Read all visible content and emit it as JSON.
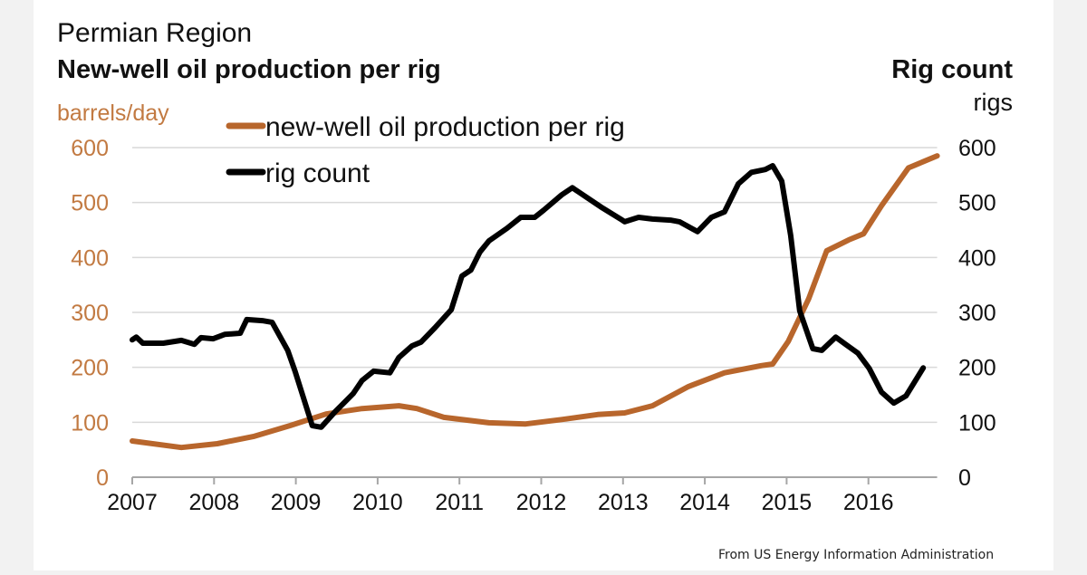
{
  "chart_data": {
    "type": "line",
    "region": "Permian Region",
    "title": "New-well oil production per rig",
    "right_title": "Rig count",
    "ylabel_left": "barrels/day",
    "ylabel_right": "rigs",
    "source": "From US Energy Information Administration",
    "xlim": [
      2007,
      2016.84
    ],
    "ylim_left": [
      0,
      600
    ],
    "ylim_right": [
      0,
      600
    ],
    "x_ticks": [
      "2007",
      "2008",
      "2009",
      "2010",
      "2011",
      "2012",
      "2013",
      "2014",
      "2015",
      "2016"
    ],
    "y_ticks_left": [
      "0",
      "100",
      "200",
      "300",
      "400",
      "500",
      "600"
    ],
    "y_ticks_right": [
      "0",
      "100",
      "200",
      "300",
      "400",
      "500",
      "600"
    ],
    "grid": "horizontal",
    "legend_placement": "top-left",
    "series": [
      {
        "name": "new-well oil production per rig",
        "axis": "left",
        "color": "#b8662c",
        "points": [
          [
            2007.0,
            66
          ],
          [
            2007.6,
            54
          ],
          [
            2008.04,
            61
          ],
          [
            2008.48,
            74
          ],
          [
            2008.93,
            94
          ],
          [
            2009.37,
            115
          ],
          [
            2009.81,
            125
          ],
          [
            2010.26,
            130
          ],
          [
            2010.48,
            125
          ],
          [
            2010.81,
            109
          ],
          [
            2011.36,
            99
          ],
          [
            2011.81,
            97
          ],
          [
            2012.25,
            105
          ],
          [
            2012.69,
            114
          ],
          [
            2013.02,
            117
          ],
          [
            2013.36,
            130
          ],
          [
            2013.8,
            165
          ],
          [
            2014.24,
            190
          ],
          [
            2014.69,
            203
          ],
          [
            2014.83,
            206
          ],
          [
            2015.02,
            247
          ],
          [
            2015.27,
            325
          ],
          [
            2015.49,
            412
          ],
          [
            2015.76,
            432
          ],
          [
            2015.94,
            443
          ],
          [
            2016.16,
            494
          ],
          [
            2016.49,
            563
          ],
          [
            2016.84,
            585
          ]
        ]
      },
      {
        "name": "rig count",
        "axis": "right",
        "color": "#000000",
        "points": [
          [
            2007.0,
            250
          ],
          [
            2007.05,
            255
          ],
          [
            2007.13,
            244
          ],
          [
            2007.38,
            244
          ],
          [
            2007.6,
            249
          ],
          [
            2007.76,
            242
          ],
          [
            2007.84,
            254
          ],
          [
            2007.99,
            252
          ],
          [
            2008.13,
            260
          ],
          [
            2008.32,
            262
          ],
          [
            2008.4,
            287
          ],
          [
            2008.59,
            285
          ],
          [
            2008.71,
            282
          ],
          [
            2008.9,
            231
          ],
          [
            2008.99,
            193
          ],
          [
            2009.2,
            94
          ],
          [
            2009.31,
            91
          ],
          [
            2009.48,
            119
          ],
          [
            2009.7,
            152
          ],
          [
            2009.81,
            176
          ],
          [
            2009.95,
            193
          ],
          [
            2010.15,
            190
          ],
          [
            2010.26,
            218
          ],
          [
            2010.42,
            239
          ],
          [
            2010.53,
            246
          ],
          [
            2010.7,
            272
          ],
          [
            2010.9,
            305
          ],
          [
            2011.03,
            366
          ],
          [
            2011.14,
            377
          ],
          [
            2011.25,
            410
          ],
          [
            2011.36,
            430
          ],
          [
            2011.58,
            453
          ],
          [
            2011.75,
            473
          ],
          [
            2011.92,
            473
          ],
          [
            2012.03,
            486
          ],
          [
            2012.25,
            514
          ],
          [
            2012.38,
            527
          ],
          [
            2012.56,
            509
          ],
          [
            2012.75,
            490
          ],
          [
            2012.97,
            470
          ],
          [
            2013.02,
            465
          ],
          [
            2013.19,
            473
          ],
          [
            2013.36,
            470
          ],
          [
            2013.58,
            468
          ],
          [
            2013.69,
            465
          ],
          [
            2013.91,
            447
          ],
          [
            2014.08,
            473
          ],
          [
            2014.24,
            483
          ],
          [
            2014.41,
            534
          ],
          [
            2014.57,
            555
          ],
          [
            2014.74,
            560
          ],
          [
            2014.83,
            567
          ],
          [
            2014.94,
            539
          ],
          [
            2015.05,
            440
          ],
          [
            2015.16,
            303
          ],
          [
            2015.32,
            234
          ],
          [
            2015.43,
            231
          ],
          [
            2015.6,
            255
          ],
          [
            2015.72,
            242
          ],
          [
            2015.87,
            226
          ],
          [
            2016.01,
            198
          ],
          [
            2016.16,
            155
          ],
          [
            2016.31,
            135
          ],
          [
            2016.46,
            148
          ],
          [
            2016.67,
            199
          ]
        ]
      }
    ],
    "colors": {
      "left_axis_text": "#c27a42",
      "grid": "#d9d9d9",
      "axis": "#a6a6a6"
    }
  }
}
